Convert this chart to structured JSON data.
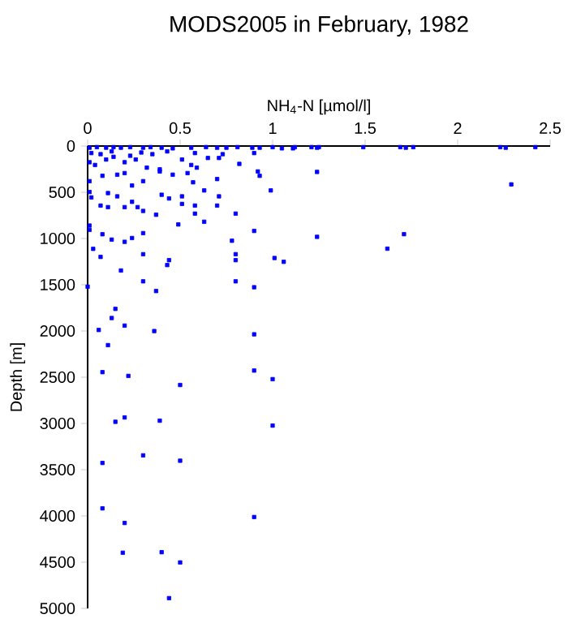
{
  "chart_data": {
    "type": "scatter",
    "title": "MODS2005 in February, 1982",
    "xlabel": "NH$_{4}$-N [µmol/l]",
    "ylabel": "Depth [m]",
    "xlim": [
      0,
      2.5
    ],
    "xticks": [
      0,
      0.5,
      1,
      1.5,
      2,
      2.5
    ],
    "ylim": [
      5000,
      0
    ],
    "yticks": [
      0,
      500,
      1000,
      1500,
      2000,
      2500,
      3000,
      3500,
      4000,
      4500,
      5000
    ],
    "marker": "square",
    "grid": false,
    "series": [
      {
        "color": "#0000ff",
        "x": [
          0.01,
          0.05,
          0.1,
          0.14,
          0.18,
          0.23,
          0.3,
          0.34,
          0.4,
          0.46,
          0.56,
          0.64,
          0.7,
          0.75,
          0.81,
          0.89,
          0.93,
          1.0,
          1.05,
          1.12,
          1.11,
          1.21,
          1.24,
          1.25,
          1.49,
          1.69,
          1.72,
          1.76,
          2.23,
          2.26,
          2.42,
          1.24,
          2.29,
          1.24,
          1.71,
          1.62,
          0.02,
          0.13,
          0.29,
          0.43,
          0.58,
          0.73,
          0.9,
          0.23,
          0.35,
          0.01,
          0.04,
          0.07,
          0.1,
          0.14,
          0.2,
          0.26,
          0.32,
          0.39,
          0.51,
          0.56,
          0.59,
          0.65,
          0.71,
          0.82,
          0.92,
          0.93,
          0.01,
          0.08,
          0.16,
          0.2,
          0.24,
          0.3,
          0.39,
          0.46,
          0.54,
          0.57,
          0.63,
          0.7,
          0.99,
          0.01,
          0.02,
          0.11,
          0.07,
          0.11,
          0.16,
          0.2,
          0.24,
          0.27,
          0.3,
          0.4,
          0.44,
          0.51,
          0.51,
          0.58,
          0.58,
          0.63,
          0.71,
          0.7,
          0.8,
          0.49,
          0.37,
          0.01,
          0.01,
          0.08,
          0.13,
          0.2,
          0.24,
          0.3,
          0.78,
          0.9,
          0.03,
          0.07,
          0.18,
          0.3,
          0.43,
          0.44,
          0.8,
          0.8,
          0.8,
          1.01,
          1.06,
          0.0,
          0.3,
          0.37,
          0.9,
          0.15,
          0.13,
          0.2,
          0.36,
          0.06,
          0.11,
          0.9,
          0.08,
          0.22,
          0.9,
          1.0,
          0.5,
          0.15,
          0.2,
          0.39,
          1.0,
          0.3,
          0.08,
          0.5,
          0.08,
          0.2,
          0.9,
          0.19,
          0.4,
          0.5,
          0.44
        ],
        "values": [
          18,
          12,
          18,
          12,
          18,
          12,
          18,
          12,
          18,
          25,
          18,
          12,
          18,
          18,
          12,
          18,
          18,
          12,
          25,
          12,
          25,
          12,
          18,
          12,
          12,
          12,
          18,
          12,
          12,
          18,
          12,
          280,
          415,
          982,
          953,
          1110,
          76,
          58,
          70,
          58,
          76,
          88,
          76,
          105,
          88,
          175,
          205,
          88,
          146,
          117,
          175,
          146,
          234,
          252,
          146,
          205,
          234,
          129,
          129,
          193,
          275,
          322,
          380,
          322,
          310,
          293,
          427,
          380,
          275,
          310,
          293,
          392,
          480,
          357,
          480,
          497,
          556,
          509,
          644,
          661,
          544,
          661,
          603,
          661,
          702,
          527,
          567,
          544,
          626,
          644,
          731,
          819,
          544,
          644,
          731,
          848,
          743,
          860,
          907,
          954,
          1012,
          1036,
          995,
          942,
          1024,
          918,
          1112,
          1199,
          1346,
          1170,
          1287,
          1234,
          1170,
          1234,
          1463,
          1211,
          1252,
          1521,
          1463,
          1568,
          1527,
          1761,
          1860,
          1942,
          2001,
          1989,
          2153,
          2036,
          2445,
          2486,
          2428,
          2521,
          2584,
          2982,
          2935,
          2970,
          3023,
          3345,
          3427,
          3403,
          3918,
          4076,
          4012,
          4398,
          4392,
          4503,
          4889
        ]
      }
    ]
  }
}
